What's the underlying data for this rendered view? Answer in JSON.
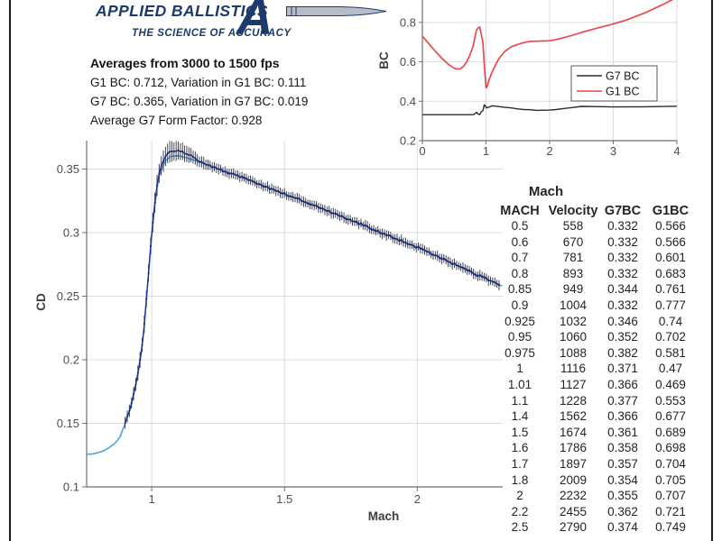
{
  "logo": {
    "brand": "APPLIED BALLISTICS",
    "tagline": "THE SCIENCE OF ACCURACY",
    "monogram": "A",
    "bullet_icon": "bullet-projectile"
  },
  "stats": {
    "title": "Averages from 3000 to 1500 fps",
    "line1": "G1 BC: 0.712, Variation in G1 BC: 0.111",
    "line2": "G7 BC: 0.365, Variation in G7 BC: 0.019",
    "line3": "Average G7 Form Factor: 0.928"
  },
  "table": {
    "title": "Mach",
    "headers": [
      "MACH",
      "Velocity",
      "G7BC",
      "G1BC"
    ],
    "rows": [
      [
        "0.5",
        "558",
        "0.332",
        "0.566"
      ],
      [
        "0.6",
        "670",
        "0.332",
        "0.566"
      ],
      [
        "0.7",
        "781",
        "0.332",
        "0.601"
      ],
      [
        "0.8",
        "893",
        "0.332",
        "0.683"
      ],
      [
        "0.85",
        "949",
        "0.344",
        "0.761"
      ],
      [
        "0.9",
        "1004",
        "0.332",
        "0.777"
      ],
      [
        "0.925",
        "1032",
        "0.346",
        "0.74"
      ],
      [
        "0.95",
        "1060",
        "0.352",
        "0.702"
      ],
      [
        "0.975",
        "1088",
        "0.382",
        "0.581"
      ],
      [
        "1",
        "1116",
        "0.371",
        "0.47"
      ],
      [
        "1.01",
        "1127",
        "0.366",
        "0.469"
      ],
      [
        "1.1",
        "1228",
        "0.377",
        "0.553"
      ],
      [
        "1.4",
        "1562",
        "0.366",
        "0.677"
      ],
      [
        "1.5",
        "1674",
        "0.361",
        "0.689"
      ],
      [
        "1.6",
        "1786",
        "0.358",
        "0.698"
      ],
      [
        "1.7",
        "1897",
        "0.357",
        "0.704"
      ],
      [
        "1.8",
        "2009",
        "0.354",
        "0.705"
      ],
      [
        "2",
        "2232",
        "0.355",
        "0.707"
      ],
      [
        "2.2",
        "2455",
        "0.362",
        "0.721"
      ],
      [
        "2.5",
        "2790",
        "0.374",
        "0.749"
      ]
    ]
  },
  "colors": {
    "brand_navy": "#1d3a6d",
    "g1_red": "#e8484f",
    "g7_black": "#2b2b2b",
    "model_blue": "#4aa3dc",
    "data_navy": "#20309c",
    "errorbar": "#32323f",
    "grid": "#dcdcdc",
    "axis": "#6e6e6e",
    "tick_label": "#4d4d4d"
  },
  "chart_data": [
    {
      "id": "bc_inset",
      "type": "line",
      "title": "",
      "xlabel": "",
      "ylabel": "BC",
      "xlim": [
        0,
        4
      ],
      "ylim_visible": [
        0.2,
        0.915
      ],
      "grid": true,
      "x_tick_labels": [
        "0",
        "1",
        "2",
        "3",
        "4"
      ],
      "x_ticks": [
        0,
        1,
        2,
        3,
        4
      ],
      "y_tick_labels": [
        "0.8",
        "0.6",
        "0.4",
        "0.2"
      ],
      "y_ticks": [
        0.8,
        0.6,
        0.4,
        0.2
      ],
      "legend": {
        "position": "mid-right",
        "entries": [
          {
            "label": "G7 BC",
            "color": "#2b2b2b"
          },
          {
            "label": "G1 BC",
            "color": "#e8484f"
          }
        ]
      },
      "series": [
        {
          "name": "G7 BC",
          "color": "#2b2b2b",
          "points": [
            [
              0,
              0.332
            ],
            [
              0.78,
              0.332
            ],
            [
              0.82,
              0.334
            ],
            [
              0.85,
              0.344
            ],
            [
              0.87,
              0.337
            ],
            [
              0.9,
              0.332
            ],
            [
              0.925,
              0.346
            ],
            [
              0.95,
              0.352
            ],
            [
              0.975,
              0.382
            ],
            [
              1.0,
              0.371
            ],
            [
              1.01,
              0.366
            ],
            [
              1.05,
              0.371
            ],
            [
              1.1,
              0.377
            ],
            [
              1.2,
              0.373
            ],
            [
              1.3,
              0.369
            ],
            [
              1.4,
              0.366
            ],
            [
              1.5,
              0.361
            ],
            [
              1.6,
              0.358
            ],
            [
              1.7,
              0.357
            ],
            [
              1.8,
              0.354
            ],
            [
              1.9,
              0.3545
            ],
            [
              2.0,
              0.355
            ],
            [
              2.1,
              0.358
            ],
            [
              2.2,
              0.362
            ],
            [
              2.35,
              0.368
            ],
            [
              2.5,
              0.374
            ],
            [
              2.7,
              0.373
            ],
            [
              3.0,
              0.371
            ],
            [
              3.5,
              0.372
            ],
            [
              4.0,
              0.375
            ]
          ]
        },
        {
          "name": "G1 BC",
          "color": "#e8484f",
          "points": [
            [
              0,
              0.73
            ],
            [
              0.1,
              0.693
            ],
            [
              0.2,
              0.655
            ],
            [
              0.3,
              0.62
            ],
            [
              0.4,
              0.59
            ],
            [
              0.5,
              0.567
            ],
            [
              0.55,
              0.564
            ],
            [
              0.6,
              0.565
            ],
            [
              0.65,
              0.578
            ],
            [
              0.7,
              0.601
            ],
            [
              0.75,
              0.638
            ],
            [
              0.8,
              0.683
            ],
            [
              0.85,
              0.761
            ],
            [
              0.88,
              0.773
            ],
            [
              0.9,
              0.777
            ],
            [
              0.925,
              0.74
            ],
            [
              0.95,
              0.702
            ],
            [
              0.975,
              0.581
            ],
            [
              1.0,
              0.47
            ],
            [
              1.01,
              0.469
            ],
            [
              1.05,
              0.51
            ],
            [
              1.1,
              0.553
            ],
            [
              1.15,
              0.585
            ],
            [
              1.2,
              0.615
            ],
            [
              1.3,
              0.655
            ],
            [
              1.4,
              0.677
            ],
            [
              1.5,
              0.689
            ],
            [
              1.6,
              0.698
            ],
            [
              1.7,
              0.704
            ],
            [
              1.8,
              0.705
            ],
            [
              1.9,
              0.706
            ],
            [
              2.0,
              0.707
            ],
            [
              2.1,
              0.713
            ],
            [
              2.2,
              0.721
            ],
            [
              2.35,
              0.734
            ],
            [
              2.5,
              0.749
            ],
            [
              2.7,
              0.767
            ],
            [
              3.0,
              0.792
            ],
            [
              3.2,
              0.812
            ],
            [
              3.5,
              0.849
            ],
            [
              3.8,
              0.894
            ],
            [
              4.0,
              0.928
            ]
          ]
        }
      ]
    },
    {
      "id": "cd_main",
      "type": "line+errorbar",
      "title": "",
      "xlabel": "Mach",
      "ylabel": "CD",
      "xlim": [
        0.755,
        2.32
      ],
      "ylim": [
        0.1,
        0.372
      ],
      "grid": true,
      "x_tick_labels": [
        "1",
        "1.5",
        "2"
      ],
      "x_ticks": [
        1,
        1.5,
        2
      ],
      "y_tick_labels": [
        "0.35",
        "0.3",
        "0.25",
        "0.2",
        "0.15",
        "0.1"
      ],
      "y_ticks": [
        0.35,
        0.3,
        0.25,
        0.2,
        0.15,
        0.1
      ],
      "series": [
        {
          "name": "model CD curve",
          "color": "#4aa3dc",
          "points": [
            [
              0.755,
              0.1255
            ],
            [
              0.78,
              0.126
            ],
            [
              0.8,
              0.127
            ],
            [
              0.82,
              0.1285
            ],
            [
              0.84,
              0.131
            ],
            [
              0.86,
              0.134
            ],
            [
              0.88,
              0.139
            ],
            [
              0.9,
              0.15
            ],
            [
              0.92,
              0.162
            ],
            [
              0.94,
              0.18
            ],
            [
              0.95,
              0.191
            ],
            [
              0.96,
              0.204
            ],
            [
              0.97,
              0.222
            ],
            [
              0.98,
              0.247
            ],
            [
              0.99,
              0.272
            ],
            [
              1.0,
              0.298
            ],
            [
              1.01,
              0.318
            ],
            [
              1.02,
              0.335
            ],
            [
              1.03,
              0.346
            ],
            [
              1.05,
              0.356
            ],
            [
              1.07,
              0.36
            ],
            [
              1.1,
              0.3605
            ],
            [
              1.13,
              0.359
            ],
            [
              1.16,
              0.357
            ],
            [
              1.2,
              0.354
            ],
            [
              1.25,
              0.35
            ],
            [
              1.3,
              0.3465
            ],
            [
              1.4,
              0.3385
            ],
            [
              1.5,
              0.3305
            ],
            [
              1.6,
              0.3225
            ],
            [
              1.7,
              0.314
            ],
            [
              1.8,
              0.3055
            ],
            [
              1.9,
              0.297
            ],
            [
              2.0,
              0.2885
            ],
            [
              2.1,
              0.279
            ],
            [
              2.2,
              0.269
            ],
            [
              2.32,
              0.258
            ]
          ]
        },
        {
          "name": "measured CD with error bars",
          "color": "#20309c",
          "mach_range": [
            0.9,
            2.315
          ],
          "step": 0.008,
          "base_error": 0.003,
          "peak_error": 0.0075,
          "peak_mach": 1.05
        }
      ]
    }
  ]
}
